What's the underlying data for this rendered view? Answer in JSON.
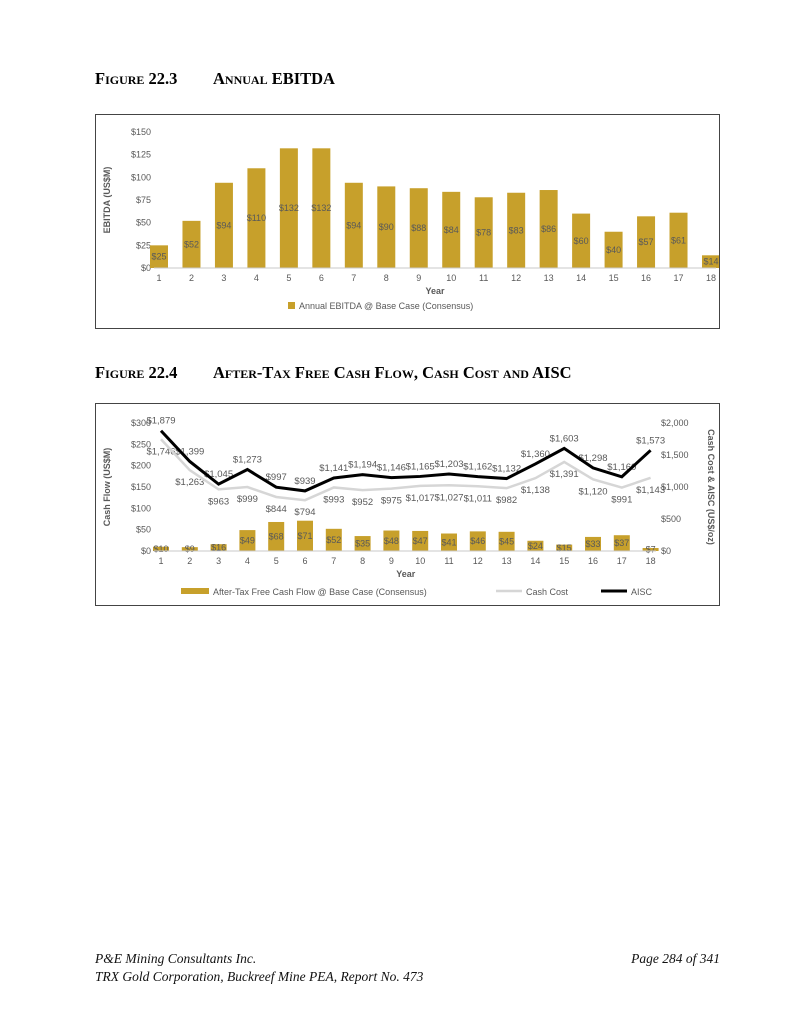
{
  "figures": [
    {
      "label": "Figure 22.3",
      "title": "Annual EBITDA"
    },
    {
      "label": "Figure 22.4",
      "title": "After-Tax Free Cash Flow, Cash Cost and AISC"
    }
  ],
  "footer": {
    "left_line1": "P&E Mining Consultants Inc.",
    "left_line2": "TRX Gold Corporation, Buckreef Mine PEA, Report No. 473",
    "right": "Page 284 of 341"
  },
  "chart_data": [
    {
      "type": "bar",
      "categories": [
        "1",
        "2",
        "3",
        "4",
        "5",
        "6",
        "7",
        "8",
        "9",
        "10",
        "11",
        "12",
        "13",
        "14",
        "15",
        "16",
        "17",
        "18"
      ],
      "values": [
        25,
        52,
        94,
        110,
        132,
        132,
        94,
        90,
        88,
        84,
        78,
        83,
        86,
        60,
        40,
        57,
        61,
        14
      ],
      "value_labels": [
        "$25",
        "$52",
        "$94",
        "$110",
        "$132",
        "$132",
        "$94",
        "$90",
        "$88",
        "$84",
        "$78",
        "$83",
        "$86",
        "$60",
        "$40",
        "$57",
        "$61",
        "$14"
      ],
      "xlabel": "Year",
      "ylabel": "EBITDA (US$M)",
      "ylim": [
        0,
        150
      ],
      "ytick_labels": [
        "$0",
        "$25",
        "$50",
        "$75",
        "$100",
        "$125",
        "$150"
      ],
      "grid": false,
      "legend_position": "bottom",
      "legend": [
        "Annual EBITDA @ Base Case (Consensus)"
      ],
      "bar_color": "#C7A02B",
      "label_color": "#595959"
    },
    {
      "type": "combo",
      "categories": [
        "1",
        "2",
        "3",
        "4",
        "5",
        "6",
        "7",
        "8",
        "9",
        "10",
        "11",
        "12",
        "13",
        "14",
        "15",
        "16",
        "17",
        "18"
      ],
      "series": [
        {
          "name": "After-Tax Free Cash Flow @ Base Case (Consensus)",
          "chart_type": "bar",
          "axis": "left",
          "values": [
            10,
            9,
            16,
            49,
            68,
            71,
            52,
            35,
            48,
            47,
            41,
            46,
            45,
            24,
            15,
            33,
            37,
            7
          ],
          "value_labels": [
            "$10",
            "$9",
            "$16",
            "$49",
            "$68",
            "$71",
            "$52",
            "$35",
            "$48",
            "$47",
            "$41",
            "$46",
            "$45",
            "$24",
            "$15",
            "$33",
            "$37",
            "$7"
          ],
          "color": "#C7A02B"
        },
        {
          "name": "Cash Cost",
          "chart_type": "line",
          "axis": "right",
          "values": [
            1746,
            1263,
            963,
            999,
            844,
            794,
            993,
            952,
            975,
            1017,
            1027,
            1011,
            982,
            1138,
            1391,
            1120,
            991,
            1143
          ],
          "value_labels": [
            "$1,746",
            "$1,263",
            "$963",
            "$999",
            "$844",
            "$794",
            "$993",
            "$952",
            "$975",
            "$1,017",
            "$1,027",
            "$1,011",
            "$982",
            "$1,138",
            "$1,391",
            "$1,120",
            "$991",
            "$1,143"
          ],
          "color": "#D6D6D6"
        },
        {
          "name": "AISC",
          "chart_type": "line",
          "axis": "right",
          "values": [
            1879,
            1399,
            1045,
            1273,
            997,
            939,
            1141,
            1194,
            1146,
            1165,
            1203,
            1162,
            1132,
            1360,
            1603,
            1298,
            1160,
            1573
          ],
          "value_labels": [
            "$1,879",
            "$1,399",
            "$1,045",
            "$1,273",
            "$997",
            "$939",
            "$1,141",
            "$1,194",
            "$1,146",
            "$1,165",
            "$1,203",
            "$1,162",
            "$1,132",
            "$1,360",
            "$1,603",
            "$1,298",
            "$1,160",
            "$1,573"
          ],
          "color": "#000000"
        }
      ],
      "xlabel": "Year",
      "ylabel_left": "Cash Flow (US$M)",
      "ylabel_right": "Cash Cost & AISC (US$/oz)",
      "ylim_left": [
        0,
        300
      ],
      "ylim_right": [
        0,
        2000
      ],
      "ytick_labels_left": [
        "$0",
        "$50",
        "$100",
        "$150",
        "$200",
        "$250",
        "$300"
      ],
      "ytick_labels_right": [
        "$0",
        "$500",
        "$1,000",
        "$1,500",
        "$2,000"
      ],
      "grid": false,
      "legend_position": "bottom",
      "label_color": "#595959"
    }
  ]
}
